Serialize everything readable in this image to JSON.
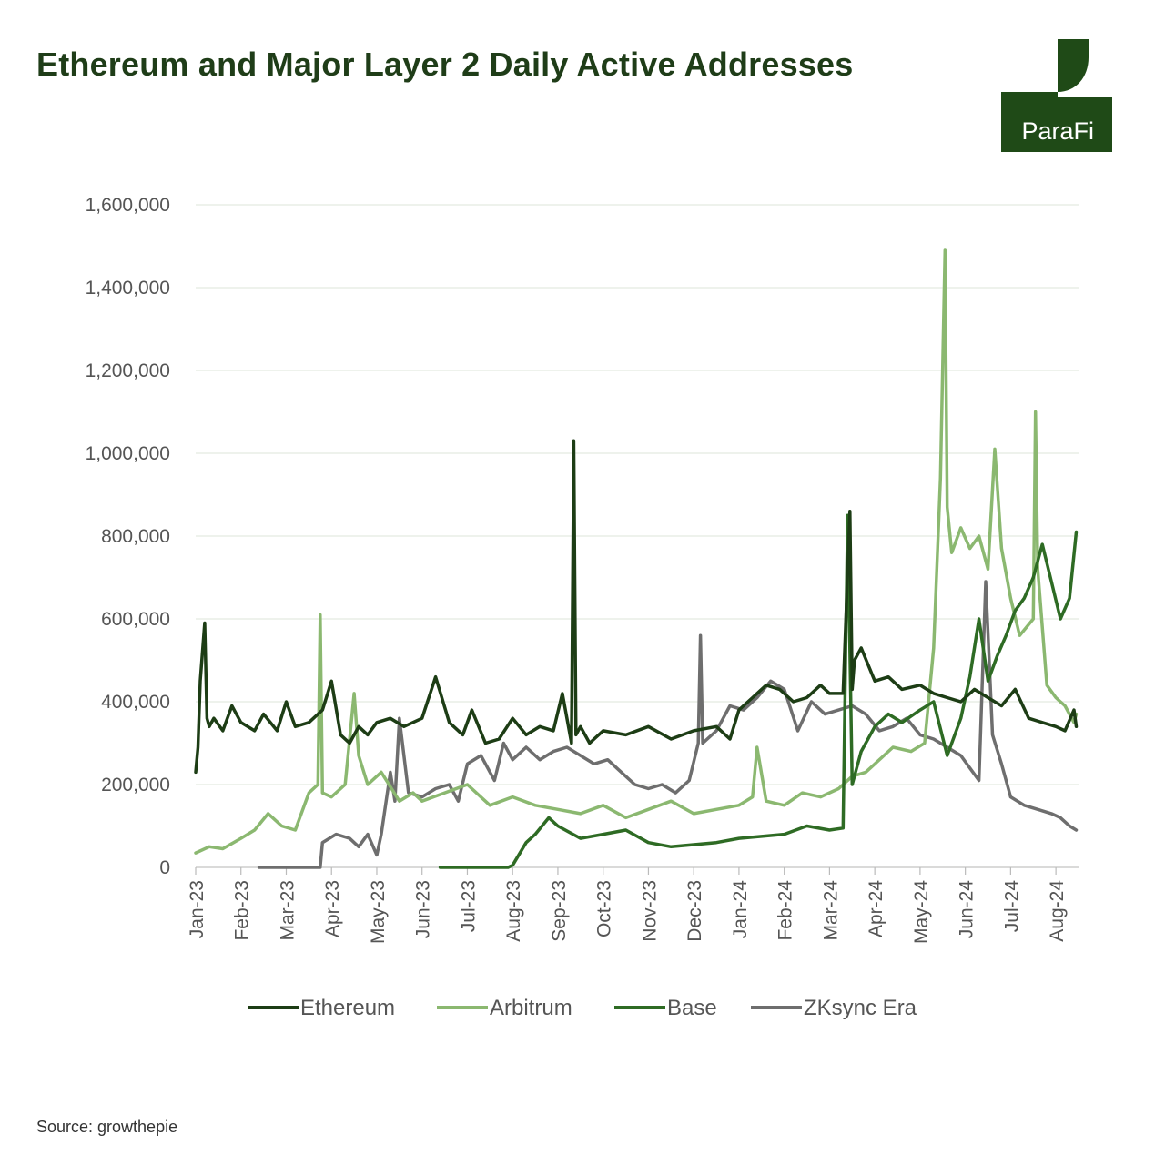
{
  "title": "Ethereum and Major Layer 2 Daily Active Addresses",
  "logo": {
    "text": "ParaFi",
    "color": "#1f4a17"
  },
  "source": "Source: growthepie",
  "chart_data": {
    "type": "line",
    "title": "Ethereum and Major Layer 2 Daily Active Addresses",
    "xlabel": "",
    "ylabel": "",
    "ylim": [
      0,
      1600000
    ],
    "yticks": [
      0,
      200000,
      400000,
      600000,
      800000,
      1000000,
      1200000,
      1400000,
      1600000
    ],
    "ytick_labels": [
      "0",
      "200,000",
      "400,000",
      "600,000",
      "800,000",
      "1,000,000",
      "1,200,000",
      "1,400,000",
      "1,600,000"
    ],
    "xlim_months": [
      0,
      19.5
    ],
    "xtick_labels": [
      "Jan-23",
      "Feb-23",
      "Mar-23",
      "Apr-23",
      "May-23",
      "Jun-23",
      "Jul-23",
      "Aug-23",
      "Sep-23",
      "Oct-23",
      "Nov-23",
      "Dec-23",
      "Jan-24",
      "Feb-24",
      "Mar-24",
      "Apr-24",
      "May-24",
      "Jun-24",
      "Jul-24",
      "Aug-24"
    ],
    "grid": true,
    "legend_position": "bottom-center",
    "series": [
      {
        "name": "Ethereum",
        "color": "#1d3d15",
        "x": [
          0,
          0.05,
          0.1,
          0.2,
          0.25,
          0.3,
          0.4,
          0.6,
          0.8,
          1.0,
          1.3,
          1.5,
          1.8,
          2.0,
          2.2,
          2.5,
          2.8,
          3.0,
          3.2,
          3.4,
          3.6,
          3.8,
          4.0,
          4.3,
          4.6,
          5.0,
          5.3,
          5.6,
          5.9,
          6.1,
          6.4,
          6.7,
          7.0,
          7.3,
          7.6,
          7.9,
          8.1,
          8.3,
          8.35,
          8.4,
          8.5,
          8.7,
          9.0,
          9.5,
          10.0,
          10.5,
          11.0,
          11.5,
          11.8,
          12.0,
          12.3,
          12.6,
          12.9,
          13.2,
          13.5,
          13.8,
          14.0,
          14.3,
          14.45,
          14.5,
          14.55,
          14.7,
          15.0,
          15.3,
          15.6,
          16.0,
          16.3,
          16.6,
          16.9,
          17.2,
          17.5,
          17.8,
          18.1,
          18.4,
          18.7,
          19.0,
          19.2,
          19.4,
          19.45
        ],
        "y": [
          230000,
          290000,
          450000,
          590000,
          360000,
          340000,
          360000,
          330000,
          390000,
          350000,
          330000,
          370000,
          330000,
          400000,
          340000,
          350000,
          380000,
          450000,
          320000,
          300000,
          340000,
          320000,
          350000,
          360000,
          340000,
          360000,
          460000,
          350000,
          320000,
          380000,
          300000,
          310000,
          360000,
          320000,
          340000,
          330000,
          420000,
          300000,
          1030000,
          320000,
          340000,
          300000,
          330000,
          320000,
          340000,
          310000,
          330000,
          340000,
          310000,
          380000,
          410000,
          440000,
          430000,
          400000,
          410000,
          440000,
          420000,
          420000,
          860000,
          430000,
          500000,
          530000,
          450000,
          460000,
          430000,
          440000,
          420000,
          410000,
          400000,
          430000,
          410000,
          390000,
          430000,
          360000,
          350000,
          340000,
          330000,
          380000,
          340000
        ]
      },
      {
        "name": "Arbitrum",
        "color": "#8bb870",
        "x": [
          0,
          0.3,
          0.6,
          1.0,
          1.3,
          1.6,
          1.9,
          2.2,
          2.5,
          2.7,
          2.75,
          2.8,
          3.0,
          3.3,
          3.5,
          3.6,
          3.8,
          4.1,
          4.5,
          4.8,
          5.0,
          5.5,
          6.0,
          6.5,
          7.0,
          7.5,
          8.0,
          8.5,
          9.0,
          9.5,
          10.0,
          10.5,
          11.0,
          11.5,
          12.0,
          12.3,
          12.4,
          12.6,
          13.0,
          13.4,
          13.8,
          14.2,
          14.5,
          14.8,
          15.0,
          15.4,
          15.8,
          16.1,
          16.3,
          16.45,
          16.55,
          16.6,
          16.7,
          16.9,
          17.1,
          17.3,
          17.5,
          17.65,
          17.8,
          18.0,
          18.2,
          18.5,
          18.55,
          18.6,
          18.8,
          19.0,
          19.2,
          19.4,
          19.45
        ],
        "y": [
          35000,
          50000,
          45000,
          70000,
          90000,
          130000,
          100000,
          90000,
          180000,
          200000,
          610000,
          180000,
          170000,
          200000,
          420000,
          270000,
          200000,
          230000,
          160000,
          180000,
          160000,
          180000,
          200000,
          150000,
          170000,
          150000,
          140000,
          130000,
          150000,
          120000,
          140000,
          160000,
          130000,
          140000,
          150000,
          170000,
          290000,
          160000,
          150000,
          180000,
          170000,
          190000,
          220000,
          230000,
          250000,
          290000,
          280000,
          300000,
          530000,
          940000,
          1490000,
          870000,
          760000,
          820000,
          770000,
          800000,
          720000,
          1010000,
          770000,
          650000,
          560000,
          600000,
          1100000,
          720000,
          440000,
          410000,
          390000,
          350000,
          370000
        ]
      },
      {
        "name": "Base",
        "color": "#2e6b24",
        "x": [
          5.4,
          5.8,
          6.2,
          6.6,
          6.9,
          7.0,
          7.3,
          7.5,
          7.8,
          8.0,
          8.5,
          9.0,
          9.5,
          10.0,
          10.5,
          11.0,
          11.5,
          12.0,
          12.5,
          13.0,
          13.5,
          14.0,
          14.3,
          14.4,
          14.5,
          14.7,
          15.0,
          15.3,
          15.6,
          16.0,
          16.3,
          16.6,
          16.9,
          17.1,
          17.3,
          17.5,
          17.7,
          17.9,
          18.1,
          18.3,
          18.5,
          18.7,
          18.9,
          19.1,
          19.3,
          19.45
        ],
        "y": [
          0,
          0,
          0,
          0,
          0,
          5000,
          60000,
          80000,
          120000,
          100000,
          70000,
          80000,
          90000,
          60000,
          50000,
          55000,
          60000,
          70000,
          75000,
          80000,
          100000,
          90000,
          95000,
          850000,
          200000,
          280000,
          340000,
          370000,
          350000,
          380000,
          400000,
          270000,
          360000,
          460000,
          600000,
          450000,
          510000,
          560000,
          620000,
          650000,
          700000,
          780000,
          690000,
          600000,
          650000,
          810000
        ]
      },
      {
        "name": "ZKsync Era",
        "color": "#6e6e6e",
        "x": [
          1.4,
          1.8,
          2.2,
          2.6,
          2.75,
          2.8,
          3.1,
          3.4,
          3.6,
          3.8,
          4.0,
          4.1,
          4.3,
          4.4,
          4.5,
          4.7,
          5.0,
          5.3,
          5.6,
          5.8,
          6.0,
          6.3,
          6.6,
          6.8,
          7.0,
          7.3,
          7.6,
          7.9,
          8.2,
          8.5,
          8.8,
          9.1,
          9.4,
          9.7,
          10.0,
          10.3,
          10.6,
          10.9,
          11.1,
          11.15,
          11.2,
          11.5,
          11.8,
          12.1,
          12.4,
          12.7,
          13.0,
          13.3,
          13.6,
          13.9,
          14.2,
          14.5,
          14.8,
          15.1,
          15.4,
          15.7,
          16.0,
          16.3,
          16.6,
          16.9,
          17.1,
          17.3,
          17.45,
          17.6,
          17.8,
          18.0,
          18.3,
          18.6,
          18.9,
          19.1,
          19.3,
          19.45
        ],
        "y": [
          0,
          0,
          0,
          0,
          0,
          60000,
          80000,
          70000,
          50000,
          80000,
          30000,
          80000,
          230000,
          160000,
          360000,
          180000,
          170000,
          190000,
          200000,
          160000,
          250000,
          270000,
          210000,
          300000,
          260000,
          290000,
          260000,
          280000,
          290000,
          270000,
          250000,
          260000,
          230000,
          200000,
          190000,
          200000,
          180000,
          210000,
          300000,
          560000,
          300000,
          330000,
          390000,
          380000,
          410000,
          450000,
          430000,
          330000,
          400000,
          370000,
          380000,
          390000,
          370000,
          330000,
          340000,
          360000,
          320000,
          310000,
          290000,
          270000,
          240000,
          210000,
          690000,
          320000,
          250000,
          170000,
          150000,
          140000,
          130000,
          120000,
          100000,
          90000
        ]
      }
    ]
  }
}
